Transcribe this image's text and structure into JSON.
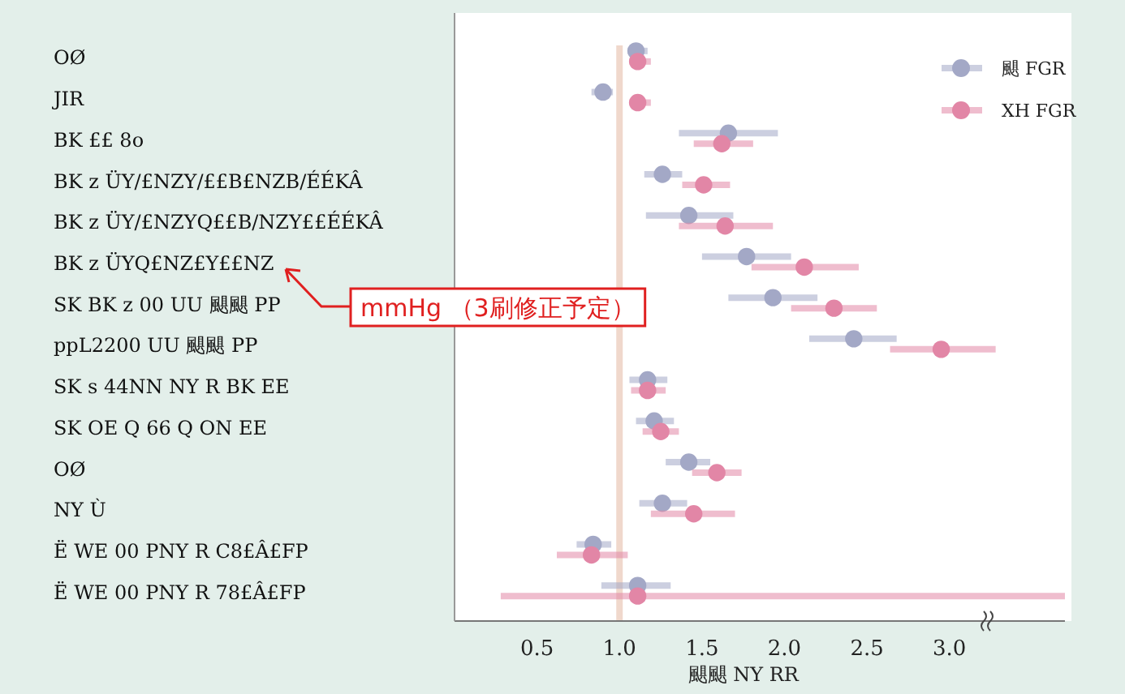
{
  "chart_data": {
    "type": "scatter",
    "orientation": "horizontal",
    "xlabel": "颶颶 NY RR",
    "categories": [
      "OØ",
      "JIR",
      "BK ££ 8o",
      "BK z ÜY/£NZY/££B£NZB/ÉÉKÂ",
      "BK z ÜY/£NZYQ££B/NZY££ÉÉKÂ",
      "BK z ÜYQ£NZ£Y££NZ",
      "SK BK z 00 UU 颶颶 PP",
      "ppL2200 UU 颶颶 PP",
      "SK s 44NN NY R BK EE",
      "SK OE Q 66 Q ON EE",
      "OØ",
      "NY Ù",
      "Ë WE 00 PNY R C8£Â£FP",
      "Ë WE 00 PNY R 78£Â£FP"
    ],
    "series": [
      {
        "name": "颶 FGR",
        "color": "#a3a8c6",
        "values": [
          1.1,
          0.9,
          1.66,
          1.26,
          1.42,
          1.77,
          1.93,
          2.42,
          1.17,
          1.21,
          1.42,
          1.26,
          0.84,
          1.11
        ],
        "errors": [
          [
            1.05,
            1.17
          ],
          [
            0.83,
            0.96
          ],
          [
            1.36,
            1.96
          ],
          [
            1.15,
            1.38
          ],
          [
            1.16,
            1.69
          ],
          [
            1.5,
            2.04
          ],
          [
            1.66,
            2.2
          ],
          [
            2.15,
            2.68
          ],
          [
            1.06,
            1.29
          ],
          [
            1.1,
            1.33
          ],
          [
            1.28,
            1.55
          ],
          [
            1.12,
            1.41
          ],
          [
            0.74,
            0.95
          ],
          [
            0.89,
            1.31
          ]
        ]
      },
      {
        "name": "XH FGR",
        "color": "#e286a6",
        "values": [
          1.11,
          1.11,
          1.62,
          1.51,
          1.64,
          2.12,
          2.3,
          2.95,
          1.17,
          1.25,
          1.59,
          1.45,
          0.83,
          1.11
        ],
        "errors": [
          [
            1.06,
            1.19
          ],
          [
            1.06,
            1.19
          ],
          [
            1.45,
            1.81
          ],
          [
            1.38,
            1.67
          ],
          [
            1.36,
            1.93
          ],
          [
            1.8,
            2.45
          ],
          [
            2.04,
            2.56
          ],
          [
            2.64,
            3.28
          ],
          [
            1.07,
            1.28
          ],
          [
            1.14,
            1.36
          ],
          [
            1.44,
            1.74
          ],
          [
            1.19,
            1.7
          ],
          [
            0.62,
            1.05
          ],
          [
            0.28,
            3.7
          ]
        ]
      }
    ],
    "xlim": [
      0,
      3.7
    ],
    "xticks": [
      {
        "value": 0.5,
        "label": "0.5"
      },
      {
        "value": 1.0,
        "label": "1.0"
      },
      {
        "value": 1.5,
        "label": "1.5"
      },
      {
        "value": 2.0,
        "label": "2.0"
      },
      {
        "value": 2.5,
        "label": "2.5"
      },
      {
        "value": 3.0,
        "label": "3.0"
      }
    ],
    "ref_lines": [
      {
        "axis": "x",
        "value": 1.0,
        "color": "#f0d8cc"
      }
    ],
    "annotations": [
      "mmHg （3刷修正予定）"
    ],
    "legend": "top right",
    "marker": "circle",
    "grid": false
  }
}
